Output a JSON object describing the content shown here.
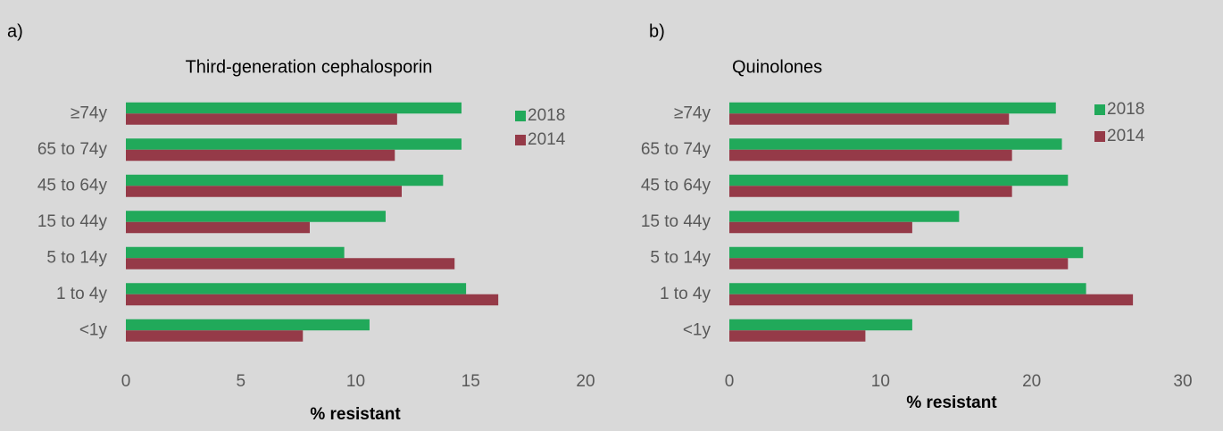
{
  "chart_data": [
    {
      "type": "barh",
      "label": "a)",
      "title": "Third-generation cephalosporin",
      "xlabel": "% resistant",
      "categories": [
        "≥74y",
        "65 to 74y",
        "45 to 64y",
        "15 to 44y",
        "5 to 14y",
        "1 to 4y",
        "<1y"
      ],
      "series": [
        {
          "name": "2018",
          "color": "#21a95a",
          "values": [
            14.6,
            14.6,
            13.8,
            11.3,
            9.5,
            14.8,
            10.6
          ]
        },
        {
          "name": "2014",
          "color": "#953a48",
          "values": [
            11.8,
            11.7,
            12.0,
            8.0,
            14.3,
            16.2,
            7.7
          ]
        }
      ],
      "xlim": [
        0,
        20
      ],
      "xticks": [
        0,
        5,
        10,
        15,
        20
      ],
      "legend": "upper right"
    },
    {
      "type": "barh",
      "label": "b)",
      "title": "Quinolones",
      "xlabel": "% resistant",
      "categories": [
        "≥74y",
        "65 to 74y",
        "45 to 64y",
        "15 to 44y",
        "5 to 14y",
        "1 to 4y",
        "<1y"
      ],
      "series": [
        {
          "name": "2018",
          "color": "#21a95a",
          "values": [
            21.6,
            22.0,
            22.4,
            15.2,
            23.4,
            23.6,
            12.1
          ]
        },
        {
          "name": "2014",
          "color": "#953a48",
          "values": [
            18.5,
            18.7,
            18.7,
            12.1,
            22.4,
            26.7,
            9.0
          ]
        }
      ],
      "xlim": [
        0,
        30
      ],
      "xticks": [
        0,
        10,
        20,
        30
      ],
      "legend": "upper right"
    }
  ]
}
